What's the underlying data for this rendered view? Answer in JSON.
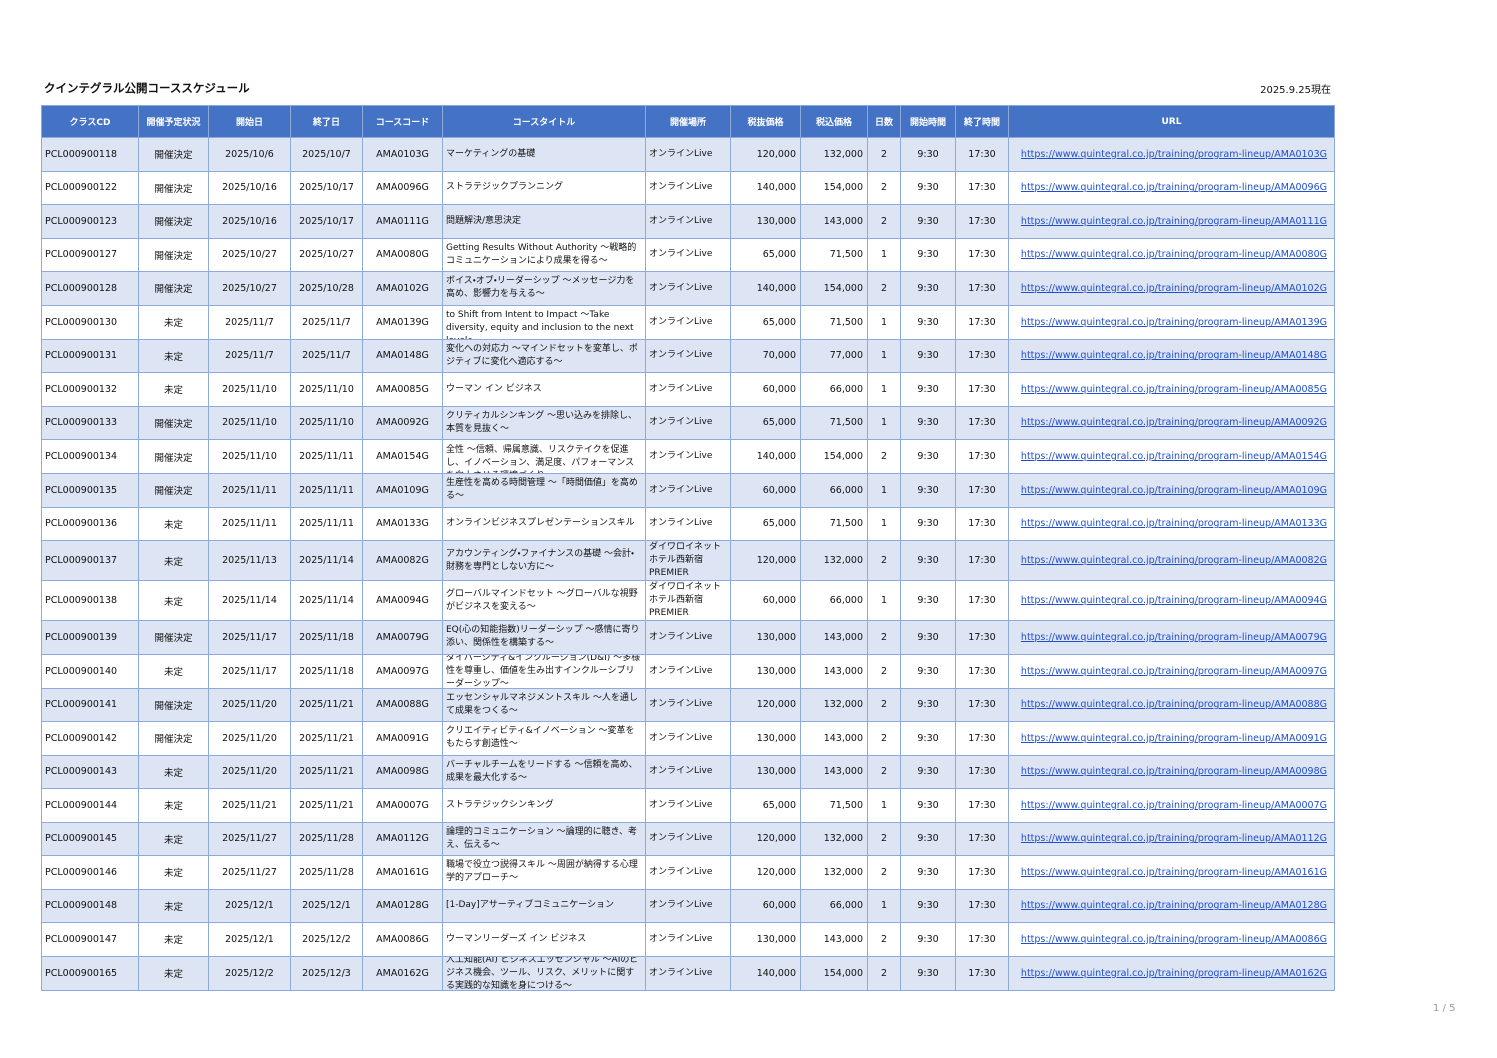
{
  "header": {
    "title": "クインテグラル公開コーススケジュール",
    "as_of": "2025.9.25現在"
  },
  "table": {
    "columns": [
      "クラスCD",
      "開催予定状況",
      "開始日",
      "終了日",
      "コースコード",
      "コースタイトル",
      "開催場所",
      "税抜価格",
      "税込価格",
      "日数",
      "開始時間",
      "終了時間",
      "URL"
    ],
    "rows": [
      [
        "PCL000900118",
        "開催決定",
        "2025/10/6",
        "2025/10/7",
        "AMA0103G",
        "マーケティングの基礎",
        "オンラインLive",
        "120,000",
        "132,000",
        "2",
        "9:30",
        "17:30",
        "https://www.quintegral.co.jp/training/program-lineup/AMA0103G"
      ],
      [
        "PCL000900122",
        "開催決定",
        "2025/10/16",
        "2025/10/17",
        "AMA0096G",
        "ストラテジックプランニング",
        "オンラインLive",
        "140,000",
        "154,000",
        "2",
        "9:30",
        "17:30",
        "https://www.quintegral.co.jp/training/program-lineup/AMA0096G"
      ],
      [
        "PCL000900123",
        "開催決定",
        "2025/10/16",
        "2025/10/17",
        "AMA0111G",
        "問題解決/意思決定",
        "オンラインLive",
        "130,000",
        "143,000",
        "2",
        "9:30",
        "17:30",
        "https://www.quintegral.co.jp/training/program-lineup/AMA0111G"
      ],
      [
        "PCL000900127",
        "開催決定",
        "2025/10/27",
        "2025/10/27",
        "AMA0080G",
        "Getting Results Without Authority ～戦略的コミュニケーションにより成果を得る～",
        "オンラインLive",
        "65,000",
        "71,500",
        "1",
        "9:30",
        "17:30",
        "https://www.quintegral.co.jp/training/program-lineup/AMA0080G"
      ],
      [
        "PCL000900128",
        "開催決定",
        "2025/10/27",
        "2025/10/28",
        "AMA0102G",
        "ボイス・オブ・リーダーシップ ～メッセージ力を高め、影響力を与える～",
        "オンラインLive",
        "140,000",
        "154,000",
        "2",
        "9:30",
        "17:30",
        "https://www.quintegral.co.jp/training/program-lineup/AMA0102G"
      ],
      [
        "PCL000900130",
        "未定",
        "2025/11/7",
        "2025/11/7",
        "AMA0139G",
        "Moving from Inclusion to Belonging: How to Shift from Intent to Impact ～Take diversity, equity and inclusion to the next level～",
        "オンラインLive",
        "65,000",
        "71,500",
        "1",
        "9:30",
        "17:30",
        "https://www.quintegral.co.jp/training/program-lineup/AMA0139G"
      ],
      [
        "PCL000900131",
        "未定",
        "2025/11/7",
        "2025/11/7",
        "AMA0148G",
        "変化への対応力 ～マインドセットを変革し、ポジティブに変化へ適応する～",
        "オンラインLive",
        "70,000",
        "77,000",
        "1",
        "9:30",
        "17:30",
        "https://www.quintegral.co.jp/training/program-lineup/AMA0148G"
      ],
      [
        "PCL000900132",
        "未定",
        "2025/11/10",
        "2025/11/10",
        "AMA0085G",
        "ウーマン イン ビジネス",
        "オンラインLive",
        "60,000",
        "66,000",
        "1",
        "9:30",
        "17:30",
        "https://www.quintegral.co.jp/training/program-lineup/AMA0085G"
      ],
      [
        "PCL000900133",
        "開催決定",
        "2025/11/10",
        "2025/11/10",
        "AMA0092G",
        "クリティカルシンキング ～思い込みを排除し、本質を見抜く～",
        "オンラインLive",
        "65,000",
        "71,500",
        "1",
        "9:30",
        "17:30",
        "https://www.quintegral.co.jp/training/program-lineup/AMA0092G"
      ],
      [
        "PCL000900134",
        "開催決定",
        "2025/11/10",
        "2025/11/11",
        "AMA0154G",
        "ハイパフォーマンスチームの必須条件 心理的安全性 ～信頼、帰属意識、リスクテイクを促進し、イノベーション、満足度、パフォーマンスを向上させる環境づくり～",
        "オンラインLive",
        "140,000",
        "154,000",
        "2",
        "9:30",
        "17:30",
        "https://www.quintegral.co.jp/training/program-lineup/AMA0154G"
      ],
      [
        "PCL000900135",
        "開催決定",
        "2025/11/11",
        "2025/11/11",
        "AMA0109G",
        "生産性を高める時間管理 ～「時間価値」を高める～",
        "オンラインLive",
        "60,000",
        "66,000",
        "1",
        "9:30",
        "17:30",
        "https://www.quintegral.co.jp/training/program-lineup/AMA0109G"
      ],
      [
        "PCL000900136",
        "未定",
        "2025/11/11",
        "2025/11/11",
        "AMA0133G",
        "オンラインビジネスプレゼンテーションスキル",
        "オンラインLive",
        "65,000",
        "71,500",
        "1",
        "9:30",
        "17:30",
        "https://www.quintegral.co.jp/training/program-lineup/AMA0133G"
      ],
      [
        "PCL000900137",
        "未定",
        "2025/11/13",
        "2025/11/14",
        "AMA0082G",
        "アカウンティング・ファイナンスの基礎 ～会計・財務を専門としない方に～",
        "ダイワロイネットホテル西新宿PREMIER",
        "120,000",
        "132,000",
        "2",
        "9:30",
        "17:30",
        "https://www.quintegral.co.jp/training/program-lineup/AMA0082G"
      ],
      [
        "PCL000900138",
        "未定",
        "2025/11/14",
        "2025/11/14",
        "AMA0094G",
        "グローバルマインドセット ～グローバルな視野がビジネスを変える～",
        "ダイワロイネットホテル西新宿PREMIER",
        "60,000",
        "66,000",
        "1",
        "9:30",
        "17:30",
        "https://www.quintegral.co.jp/training/program-lineup/AMA0094G"
      ],
      [
        "PCL000900139",
        "開催決定",
        "2025/11/17",
        "2025/11/18",
        "AMA0079G",
        "EQ(心の知能指数)リーダーシップ ～感情に寄り添い、関係性を構築する～",
        "オンラインLive",
        "130,000",
        "143,000",
        "2",
        "9:30",
        "17:30",
        "https://www.quintegral.co.jp/training/program-lineup/AMA0079G"
      ],
      [
        "PCL000900140",
        "未定",
        "2025/11/17",
        "2025/11/18",
        "AMA0097G",
        "ダイバーシティ&インクルージョン(D&I) ～多様性を尊重し、価値を生み出すインクルーシブリーダーシップ～",
        "オンラインLive",
        "130,000",
        "143,000",
        "2",
        "9:30",
        "17:30",
        "https://www.quintegral.co.jp/training/program-lineup/AMA0097G"
      ],
      [
        "PCL000900141",
        "開催決定",
        "2025/11/20",
        "2025/11/21",
        "AMA0088G",
        "エッセンシャルマネジメントスキル ～人を通して成果をつくる～",
        "オンラインLive",
        "120,000",
        "132,000",
        "2",
        "9:30",
        "17:30",
        "https://www.quintegral.co.jp/training/program-lineup/AMA0088G"
      ],
      [
        "PCL000900142",
        "開催決定",
        "2025/11/20",
        "2025/11/21",
        "AMA0091G",
        "クリエイティビティ&イノベーション ～変革をもたらす創造性～",
        "オンラインLive",
        "130,000",
        "143,000",
        "2",
        "9:30",
        "17:30",
        "https://www.quintegral.co.jp/training/program-lineup/AMA0091G"
      ],
      [
        "PCL000900143",
        "未定",
        "2025/11/20",
        "2025/11/21",
        "AMA0098G",
        "バーチャルチームをリードする ～信頼を高め、成果を最大化する～",
        "オンラインLive",
        "130,000",
        "143,000",
        "2",
        "9:30",
        "17:30",
        "https://www.quintegral.co.jp/training/program-lineup/AMA0098G"
      ],
      [
        "PCL000900144",
        "未定",
        "2025/11/21",
        "2025/11/21",
        "AMA0007G",
        "ストラテジックシンキング",
        "オンラインLive",
        "65,000",
        "71,500",
        "1",
        "9:30",
        "17:30",
        "https://www.quintegral.co.jp/training/program-lineup/AMA0007G"
      ],
      [
        "PCL000900145",
        "未定",
        "2025/11/27",
        "2025/11/28",
        "AMA0112G",
        "論理的コミュニケーション ～論理的に聴き、考え、伝える～",
        "オンラインLive",
        "120,000",
        "132,000",
        "2",
        "9:30",
        "17:30",
        "https://www.quintegral.co.jp/training/program-lineup/AMA0112G"
      ],
      [
        "PCL000900146",
        "未定",
        "2025/11/27",
        "2025/11/28",
        "AMA0161G",
        "職場で役立つ説得スキル ～周囲が納得する心理学的アプローチ～",
        "オンラインLive",
        "120,000",
        "132,000",
        "2",
        "9:30",
        "17:30",
        "https://www.quintegral.co.jp/training/program-lineup/AMA0161G"
      ],
      [
        "PCL000900148",
        "未定",
        "2025/12/1",
        "2025/12/1",
        "AMA0128G",
        "[1-Day]アサーティブコミュニケーション",
        "オンラインLive",
        "60,000",
        "66,000",
        "1",
        "9:30",
        "17:30",
        "https://www.quintegral.co.jp/training/program-lineup/AMA0128G"
      ],
      [
        "PCL000900147",
        "未定",
        "2025/12/1",
        "2025/12/2",
        "AMA0086G",
        "ウーマンリーダーズ イン ビジネス",
        "オンラインLive",
        "130,000",
        "143,000",
        "2",
        "9:30",
        "17:30",
        "https://www.quintegral.co.jp/training/program-lineup/AMA0086G"
      ],
      [
        "PCL000900165",
        "未定",
        "2025/12/2",
        "2025/12/3",
        "AMA0162G",
        "人工知能(AI) ビジネスエッセンシャル ～AIのビジネス機会、ツール、リスク、メリットに関する実践的な知識を身につける～",
        "オンラインLive",
        "140,000",
        "154,000",
        "2",
        "9:30",
        "17:30",
        "https://www.quintegral.co.jp/training/program-lineup/AMA0162G"
      ]
    ]
  },
  "footer": {
    "page": "1 / 5"
  }
}
